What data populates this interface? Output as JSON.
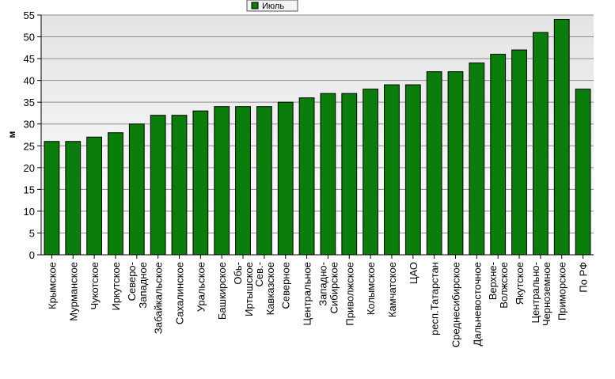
{
  "chart_data": {
    "type": "bar",
    "ylabel": "м",
    "ylim": [
      0,
      55
    ],
    "yticks": [
      0,
      5,
      10,
      15,
      20,
      25,
      30,
      35,
      40,
      45,
      50,
      55
    ],
    "grid": true,
    "legend_position": "top-center",
    "bar_color": "#0a7d0a",
    "categories": [
      [
        "Крымское"
      ],
      [
        "Мурманское"
      ],
      [
        "Чукотское"
      ],
      [
        "Иркутское"
      ],
      [
        "Северо-",
        "Западное"
      ],
      [
        "Забайкальское"
      ],
      [
        "Сахалинское"
      ],
      [
        "Уральское"
      ],
      [
        "Башкирское"
      ],
      [
        "Обь-",
        "Иртышское"
      ],
      [
        "Сев.-",
        "Кавказское"
      ],
      [
        "Северное"
      ],
      [
        "Центральное"
      ],
      [
        "Западно-",
        "Сибирское"
      ],
      [
        "Приволжское"
      ],
      [
        "Колымское"
      ],
      [
        "Камчатское"
      ],
      [
        "ЦАО"
      ],
      [
        "респ.Татарстан"
      ],
      [
        "Среднесибирское"
      ],
      [
        "Дальневосточное"
      ],
      [
        "Верхне-",
        "Волжское"
      ],
      [
        "Якутское"
      ],
      [
        "Центрально-",
        "Черноземное"
      ],
      [
        "Приморское"
      ],
      [
        "По РФ"
      ]
    ],
    "series": [
      {
        "name": "Июль",
        "values": [
          26,
          26,
          27,
          28,
          30,
          32,
          32,
          33,
          34,
          34,
          34,
          35,
          36,
          37,
          37,
          38,
          39,
          39,
          42,
          42,
          44,
          46,
          47,
          51,
          54,
          38
        ]
      }
    ]
  }
}
